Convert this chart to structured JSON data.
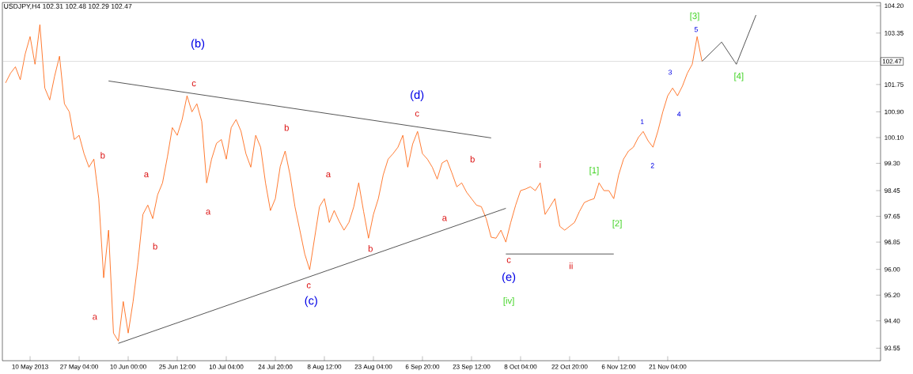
{
  "chart_data": {
    "type": "line",
    "title": "USDJPY,H4 102.31 102.48 102.29 102.47",
    "ylim": [
      93.16,
      104.3
    ],
    "categories": [
      null,
      null,
      null,
      null,
      null,
      null,
      "10 May 2013",
      null,
      null,
      null,
      null,
      null,
      null,
      null,
      null,
      null,
      "27 May 04:00",
      null,
      null,
      null,
      null,
      null,
      null,
      null,
      null,
      null,
      "10 Jun 00:00",
      null,
      null,
      null,
      null,
      null,
      null,
      null,
      null,
      null,
      "25 Jun 12:00",
      null,
      null,
      null,
      null,
      null,
      null,
      null,
      null,
      null,
      "10 Jul 04:00",
      null,
      null,
      null,
      null,
      null,
      null,
      null,
      null,
      null,
      "24 Jul 20:00",
      null,
      null,
      null,
      null,
      null,
      null,
      null,
      null,
      null,
      "8 Aug 12:00",
      null,
      null,
      null,
      null,
      null,
      null,
      null,
      null,
      null,
      "23 Aug 04:00",
      null,
      null,
      null,
      null,
      null,
      null,
      null,
      null,
      null,
      "6 Sep 20:00",
      null,
      null,
      null,
      null,
      null,
      null,
      null,
      null,
      null,
      "23 Sep 12:00",
      null,
      null,
      null,
      null,
      null,
      null,
      null,
      null,
      null,
      "8 Oct 04:00",
      null,
      null,
      null,
      null,
      null,
      null,
      null,
      null,
      null,
      "22 Oct 20:00",
      null,
      null,
      null,
      null,
      null,
      null,
      null,
      null,
      null,
      "6 Nov 12:00",
      null,
      null,
      null,
      null,
      null,
      null,
      null,
      null,
      null,
      "21 Nov 04:00",
      null,
      null,
      null,
      null,
      null,
      null,
      null,
      null,
      null,
      null,
      null,
      null,
      null,
      null,
      null,
      null,
      null,
      null,
      null,
      null,
      null,
      null,
      null,
      null,
      null,
      null,
      null,
      null,
      null,
      null,
      null,
      null,
      null,
      null,
      null,
      null,
      null,
      null,
      null,
      null,
      null,
      null,
      null
    ],
    "yticks": [
      {
        "value": 93.55,
        "label": "93.55"
      },
      {
        "value": 94.4,
        "label": "94.40"
      },
      {
        "value": 95.2,
        "label": "95.20"
      },
      {
        "value": 96.0,
        "label": "96.00"
      },
      {
        "value": 96.85,
        "label": "96.85"
      },
      {
        "value": 97.65,
        "label": "97.65"
      },
      {
        "value": 98.45,
        "label": "98.45"
      },
      {
        "value": 99.3,
        "label": "99.30"
      },
      {
        "value": 100.1,
        "label": "100.10"
      },
      {
        "value": 100.9,
        "label": "100.90"
      },
      {
        "value": 101.75,
        "label": "101.75"
      },
      {
        "value": 103.35,
        "label": "103.35"
      },
      {
        "value": 104.2,
        "label": "104.20"
      }
    ],
    "grid": false,
    "marker": "none",
    "line_style": "solid",
    "ref_lines": [
      {
        "axis": "y",
        "value": 102.47,
        "label": "102.47",
        "color": "#c0c0c0"
      }
    ],
    "series": [
      {
        "color": "#ff5a00",
        "values": [
          null,
          101.8,
          102.1,
          102.3,
          101.9,
          102.7,
          103.24,
          102.38,
          103.61,
          101.64,
          101.27,
          102.01,
          102.63,
          101.15,
          100.9,
          100.04,
          100.17,
          99.6,
          99.18,
          99.43,
          98.2,
          95.74,
          97.22,
          94.02,
          93.77,
          95.0,
          94.02,
          95.0,
          96.23,
          97.71,
          98.0,
          97.58,
          98.32,
          98.69,
          99.5,
          100.41,
          100.17,
          100.66,
          101.4,
          100.9,
          101.15,
          100.6,
          98.69,
          99.43,
          99.92,
          100.04,
          99.43,
          100.41,
          100.66,
          100.3,
          99.6,
          99.18,
          100.17,
          99.8,
          98.69,
          97.83,
          98.2,
          99.2,
          99.68,
          98.94,
          97.95,
          97.22,
          96.48,
          95.99,
          96.97,
          97.95,
          98.2,
          97.46,
          97.83,
          97.5,
          97.22,
          97.46,
          97.95,
          98.69,
          97.8,
          96.97,
          97.71,
          98.2,
          98.94,
          99.43,
          99.6,
          99.8,
          100.17,
          99.18,
          99.9,
          100.29,
          99.6,
          99.43,
          99.18,
          98.81,
          99.31,
          99.4,
          99.0,
          98.57,
          98.69,
          98.4,
          98.2,
          98.0,
          97.95,
          97.58,
          97.0,
          96.97,
          97.22,
          96.85,
          97.46,
          98.0,
          98.45,
          98.5,
          98.57,
          98.45,
          98.69,
          97.71,
          97.95,
          98.2,
          97.34,
          97.22,
          97.34,
          97.46,
          97.8,
          98.08,
          98.15,
          98.2,
          98.69,
          98.45,
          98.45,
          98.2,
          98.94,
          99.43,
          99.68,
          99.8,
          100.1,
          100.29,
          100.0,
          99.8,
          100.3,
          100.9,
          101.4,
          101.64,
          101.4,
          101.7,
          102.1,
          102.38,
          103.24,
          102.47,
          null,
          null,
          null,
          null,
          null,
          null,
          null,
          null,
          null,
          null,
          null,
          null,
          null,
          null,
          null,
          null,
          null,
          null,
          null,
          null,
          null,
          null,
          null,
          null,
          null,
          null,
          null,
          null,
          null,
          null,
          null,
          null,
          null,
          null,
          null,
          null
        ]
      },
      {
        "color": "#000000",
        "values": [
          null,
          null,
          null,
          null,
          null,
          null,
          null,
          null,
          null,
          null,
          null,
          null,
          null,
          null,
          null,
          null,
          null,
          null,
          null,
          null,
          null,
          null,
          101.86,
          null,
          null,
          null,
          null,
          null,
          null,
          null,
          null,
          null,
          null,
          null,
          null,
          null,
          null,
          null,
          null,
          null,
          null,
          null,
          null,
          null,
          null,
          null,
          null,
          null,
          null,
          null,
          null,
          null,
          null,
          null,
          null,
          null,
          null,
          null,
          null,
          null,
          null,
          null,
          null,
          null,
          null,
          null,
          null,
          null,
          null,
          null,
          null,
          null,
          null,
          null,
          null,
          null,
          null,
          null,
          null,
          null,
          null,
          null,
          null,
          null,
          null,
          null,
          null,
          null,
          null,
          null,
          null,
          null,
          null,
          null,
          null,
          null,
          null,
          null,
          null,
          null,
          100.09,
          null,
          null,
          null,
          null,
          null,
          null,
          null,
          null,
          null,
          null,
          null,
          null,
          null,
          null,
          null,
          null,
          null,
          null,
          null,
          null,
          null,
          null,
          null,
          null,
          null,
          null,
          null,
          null,
          null,
          null,
          null,
          null,
          null,
          null,
          null,
          null,
          null,
          null,
          null,
          null,
          null,
          null,
          null,
          null,
          null,
          null,
          null,
          null,
          null,
          null,
          null,
          null,
          null,
          null,
          null,
          null,
          null,
          null,
          null,
          null,
          null,
          null,
          null,
          null,
          null,
          null,
          null,
          null,
          null,
          null,
          null,
          null,
          null,
          null,
          null,
          null,
          null,
          null,
          null
        ]
      },
      {
        "color": "#000000",
        "values": [
          null,
          null,
          null,
          null,
          null,
          null,
          null,
          null,
          null,
          null,
          null,
          null,
          null,
          null,
          null,
          null,
          null,
          null,
          null,
          null,
          null,
          null,
          null,
          null,
          93.7,
          null,
          null,
          null,
          null,
          null,
          null,
          null,
          null,
          null,
          null,
          null,
          null,
          null,
          null,
          null,
          null,
          null,
          null,
          null,
          null,
          null,
          null,
          null,
          null,
          null,
          null,
          null,
          null,
          null,
          null,
          null,
          null,
          null,
          null,
          null,
          null,
          null,
          null,
          null,
          null,
          null,
          null,
          null,
          null,
          null,
          null,
          null,
          null,
          null,
          null,
          null,
          null,
          null,
          null,
          null,
          null,
          null,
          null,
          null,
          null,
          null,
          null,
          null,
          null,
          null,
          null,
          null,
          null,
          null,
          null,
          null,
          null,
          null,
          null,
          null,
          null,
          null,
          null,
          97.9,
          null,
          null,
          null,
          null,
          null,
          null,
          null,
          null,
          null,
          null,
          null,
          null,
          null,
          null,
          null,
          null,
          null,
          null,
          null,
          null,
          null,
          null,
          null,
          null,
          null,
          null,
          null,
          null,
          null,
          null,
          null,
          null,
          null,
          null,
          null,
          null,
          null,
          null,
          null,
          null,
          null,
          null,
          null,
          null,
          null,
          null,
          null,
          null,
          null,
          null,
          null,
          null,
          null,
          null,
          null,
          null,
          null,
          null,
          null,
          null,
          null,
          null,
          null,
          null,
          null,
          null,
          null,
          null,
          null,
          null,
          null,
          null,
          null,
          null,
          null,
          null
        ]
      },
      {
        "color": "#000000",
        "values": [
          null,
          null,
          null,
          null,
          null,
          null,
          null,
          null,
          null,
          null,
          null,
          null,
          null,
          null,
          null,
          null,
          null,
          null,
          null,
          null,
          null,
          null,
          null,
          null,
          null,
          null,
          null,
          null,
          null,
          null,
          null,
          null,
          null,
          null,
          null,
          null,
          null,
          null,
          null,
          null,
          null,
          null,
          null,
          null,
          null,
          null,
          null,
          null,
          null,
          null,
          null,
          null,
          null,
          null,
          null,
          null,
          null,
          null,
          null,
          null,
          null,
          null,
          null,
          null,
          null,
          null,
          null,
          null,
          null,
          null,
          null,
          null,
          null,
          null,
          null,
          null,
          null,
          null,
          null,
          null,
          null,
          null,
          null,
          null,
          null,
          null,
          null,
          null,
          null,
          null,
          null,
          null,
          null,
          null,
          null,
          null,
          null,
          null,
          null,
          null,
          null,
          null,
          null,
          96.48,
          null,
          null,
          null,
          null,
          null,
          null,
          null,
          null,
          null,
          null,
          null,
          null,
          null,
          null,
          null,
          null,
          null,
          null,
          null,
          null,
          null,
          96.48,
          null,
          null,
          null,
          null,
          null,
          null,
          null,
          null,
          null,
          null,
          null,
          null,
          null,
          null,
          null,
          null,
          null,
          null,
          null,
          null,
          null,
          null,
          null,
          null,
          null,
          null,
          null,
          null,
          null,
          null,
          null,
          null,
          null,
          null,
          null,
          null,
          null,
          null,
          null,
          null,
          null,
          null,
          null,
          null,
          null,
          null,
          null,
          null,
          null,
          null,
          null,
          null,
          null,
          null
        ]
      },
      {
        "color": "#000000",
        "values": [
          null,
          null,
          null,
          null,
          null,
          null,
          null,
          null,
          null,
          null,
          null,
          null,
          null,
          null,
          null,
          null,
          null,
          null,
          null,
          null,
          null,
          null,
          null,
          null,
          null,
          null,
          null,
          null,
          null,
          null,
          null,
          null,
          null,
          null,
          null,
          null,
          null,
          null,
          null,
          null,
          null,
          null,
          null,
          null,
          null,
          null,
          null,
          null,
          null,
          null,
          null,
          null,
          null,
          null,
          null,
          null,
          null,
          null,
          null,
          null,
          null,
          null,
          null,
          null,
          null,
          null,
          null,
          null,
          null,
          null,
          null,
          null,
          null,
          null,
          null,
          null,
          null,
          null,
          null,
          null,
          null,
          null,
          null,
          null,
          null,
          null,
          null,
          null,
          null,
          null,
          null,
          null,
          null,
          null,
          null,
          null,
          null,
          null,
          null,
          null,
          null,
          null,
          null,
          null,
          null,
          null,
          null,
          null,
          null,
          null,
          null,
          null,
          null,
          null,
          null,
          null,
          null,
          null,
          null,
          null,
          null,
          null,
          null,
          null,
          null,
          null,
          null,
          null,
          null,
          null,
          null,
          null,
          null,
          null,
          null,
          null,
          null,
          null,
          null,
          null,
          null,
          null,
          null,
          102.47,
          null,
          null,
          null,
          103.07,
          null,
          null,
          102.38,
          null,
          null,
          null,
          103.91,
          null,
          null,
          null,
          null,
          null,
          null,
          null,
          null,
          null,
          null,
          null,
          null,
          null,
          null,
          null,
          null,
          null,
          null,
          null,
          null,
          null,
          null,
          null,
          null,
          null
        ]
      }
    ],
    "annotations": [
      "(b)",
      "c",
      "(d)",
      "c",
      "(c)",
      "c",
      "(e)",
      "c",
      "[iv]",
      "b",
      "a",
      "a",
      "b",
      "a",
      "b",
      "a",
      "b",
      "a",
      "b",
      "i",
      "ii",
      "[1]",
      "[2]",
      "1",
      "2",
      "3",
      "4",
      "5",
      "[3]",
      "[4]"
    ]
  }
}
